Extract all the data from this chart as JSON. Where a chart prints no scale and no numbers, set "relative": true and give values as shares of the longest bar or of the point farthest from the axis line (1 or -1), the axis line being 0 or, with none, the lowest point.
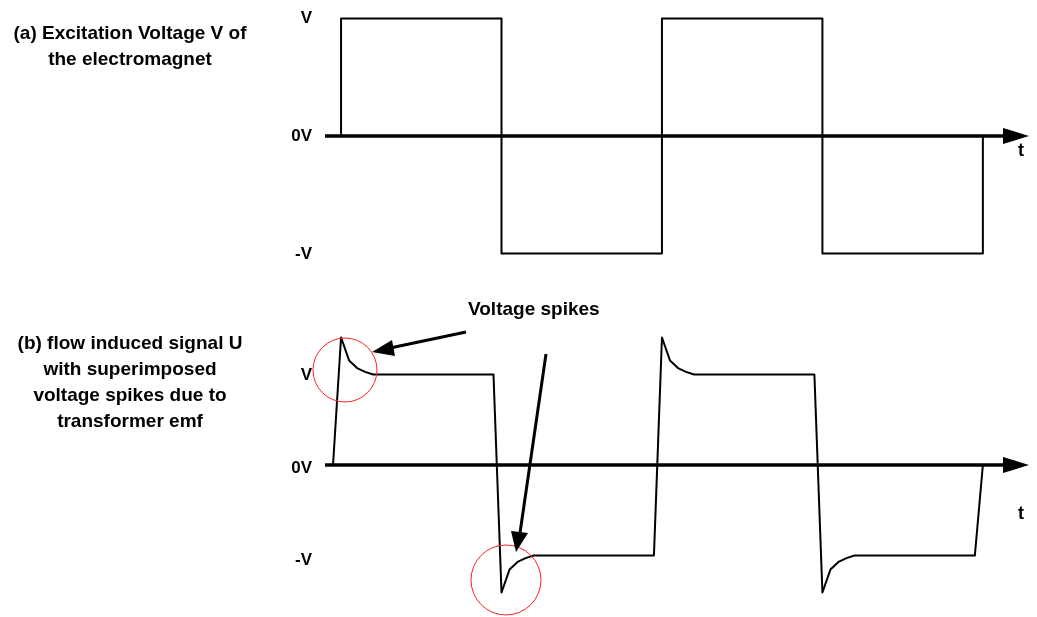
{
  "chart_data": [
    {
      "type": "step",
      "title": "(a) Excitation Voltage V of the electromagnet",
      "xlabel": "t",
      "relative": true,
      "categories": [
        null,
        null,
        null,
        null,
        null,
        null,
        null,
        null,
        null,
        null,
        null,
        null,
        null,
        null,
        null,
        null,
        null,
        null,
        null,
        null,
        null,
        null,
        null,
        null,
        null,
        null,
        null,
        null,
        null,
        null,
        null,
        null,
        null,
        null,
        null,
        null,
        null,
        null,
        null,
        null,
        null,
        null,
        null,
        null,
        null,
        null,
        null,
        null,
        null,
        null,
        null,
        null,
        null,
        null,
        null,
        null,
        null,
        null,
        null,
        null,
        null,
        null,
        null,
        null,
        null,
        null,
        null,
        null,
        null,
        null,
        null,
        null,
        null,
        null,
        null,
        null,
        null,
        null,
        null,
        null,
        null,
        null
      ],
      "series": [
        {
          "color": "#000000",
          "values": [
            0,
            1,
            1,
            1,
            1,
            1,
            1,
            1,
            1,
            1,
            1,
            1,
            1,
            1,
            1,
            1,
            1,
            1,
            1,
            1,
            1,
            -1,
            -1,
            -1,
            -1,
            -1,
            -1,
            -1,
            -1,
            -1,
            -1,
            -1,
            -1,
            -1,
            -1,
            -1,
            -1,
            -1,
            -1,
            -1,
            -1,
            1,
            1,
            1,
            1,
            1,
            1,
            1,
            1,
            1,
            1,
            1,
            1,
            1,
            1,
            1,
            1,
            1,
            1,
            1,
            1,
            -1,
            -1,
            -1,
            -1,
            -1,
            -1,
            -1,
            -1,
            -1,
            -1,
            -1,
            -1,
            -1,
            -1,
            -1,
            -1,
            -1,
            -1,
            -1,
            -1,
            0
          ]
        }
      ],
      "annotations": [
        "V",
        "0V",
        "-V"
      ],
      "legend": false
    },
    {
      "type": "line",
      "title": "(b) flow induced signal U with superimposed voltage spikes due to transformer emf",
      "xlabel": "t",
      "relative": true,
      "marker": "none",
      "categories": [
        null,
        null,
        null,
        null,
        null,
        null,
        null,
        null,
        null,
        null,
        null,
        null,
        null,
        null,
        null,
        null,
        null,
        null,
        null,
        null,
        null,
        null,
        null,
        null,
        null,
        null,
        null,
        null,
        null,
        null,
        null,
        null,
        null,
        null,
        null,
        null,
        null,
        null,
        null,
        null,
        null,
        null,
        null,
        null,
        null,
        null,
        null,
        null,
        null,
        null,
        null,
        null,
        null,
        null,
        null,
        null,
        null,
        null,
        null,
        null,
        null,
        null,
        null,
        null,
        null,
        null,
        null,
        null,
        null,
        null,
        null,
        null,
        null,
        null,
        null,
        null,
        null,
        null,
        null,
        null,
        null,
        null
      ],
      "series": [
        {
          "color": "#000000",
          "values": [
            0,
            1,
            0.82,
            0.76,
            0.73,
            0.71,
            0.71,
            0.71,
            0.71,
            0.71,
            0.71,
            0.71,
            0.71,
            0.71,
            0.71,
            0.71,
            0.71,
            0.71,
            0.71,
            0.71,
            0.71,
            -1,
            -0.82,
            -0.76,
            -0.73,
            -0.71,
            -0.71,
            -0.71,
            -0.71,
            -0.71,
            -0.71,
            -0.71,
            -0.71,
            -0.71,
            -0.71,
            -0.71,
            -0.71,
            -0.71,
            -0.71,
            -0.71,
            -0.71,
            1,
            0.82,
            0.76,
            0.73,
            0.71,
            0.71,
            0.71,
            0.71,
            0.71,
            0.71,
            0.71,
            0.71,
            0.71,
            0.71,
            0.71,
            0.71,
            0.71,
            0.71,
            0.71,
            0.71,
            -1,
            -0.82,
            -0.76,
            -0.73,
            -0.71,
            -0.71,
            -0.71,
            -0.71,
            -0.71,
            -0.71,
            -0.71,
            -0.71,
            -0.71,
            -0.71,
            -0.71,
            -0.71,
            -0.71,
            -0.71,
            -0.71,
            -0.71,
            0
          ]
        }
      ],
      "annotations": [
        "Voltage spikes",
        "V",
        "0V",
        "-V"
      ],
      "legend": false
    }
  ]
}
